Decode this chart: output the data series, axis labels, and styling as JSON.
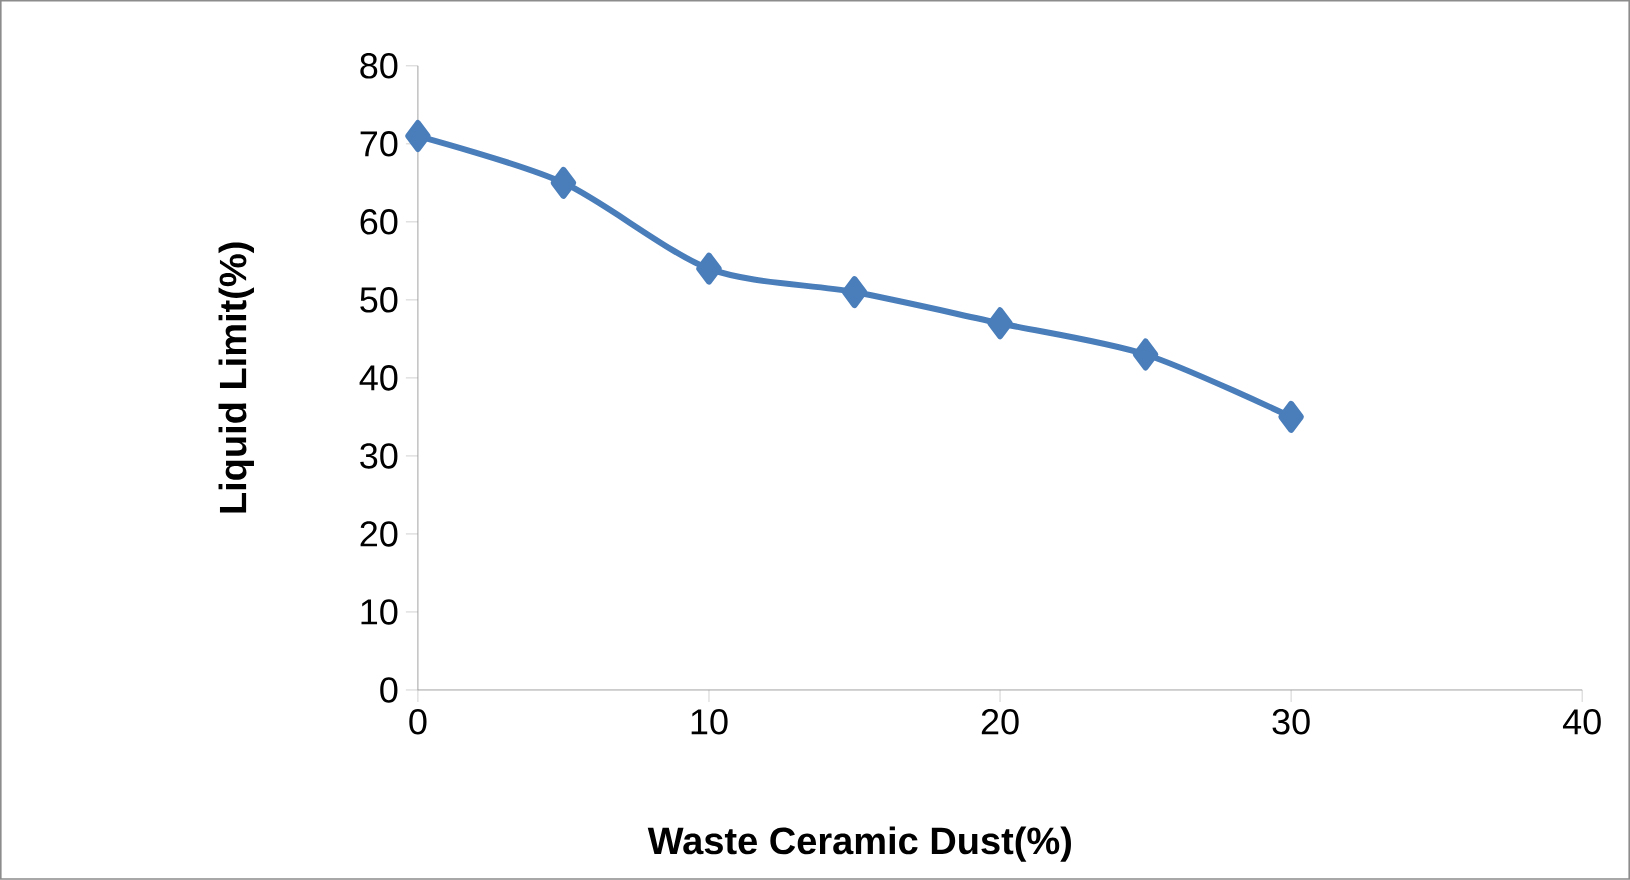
{
  "chart_data": {
    "type": "line",
    "xlabel": "Waste Ceramic Dust(%)",
    "ylabel": "Liquid Limit(%)",
    "x": [
      0,
      5,
      10,
      15,
      20,
      25,
      30
    ],
    "series": [
      {
        "color": "#4a7ebb",
        "values": [
          71,
          65,
          54,
          51,
          47,
          43,
          35
        ]
      }
    ],
    "xlim": [
      0,
      40
    ],
    "xticks": [
      0,
      10,
      20,
      30,
      40
    ],
    "ylim": [
      0,
      80
    ],
    "yticks": [
      0,
      10,
      20,
      30,
      40,
      50,
      60,
      70,
      80
    ],
    "grid": false,
    "marker": "diamond",
    "line_style": "solid"
  }
}
